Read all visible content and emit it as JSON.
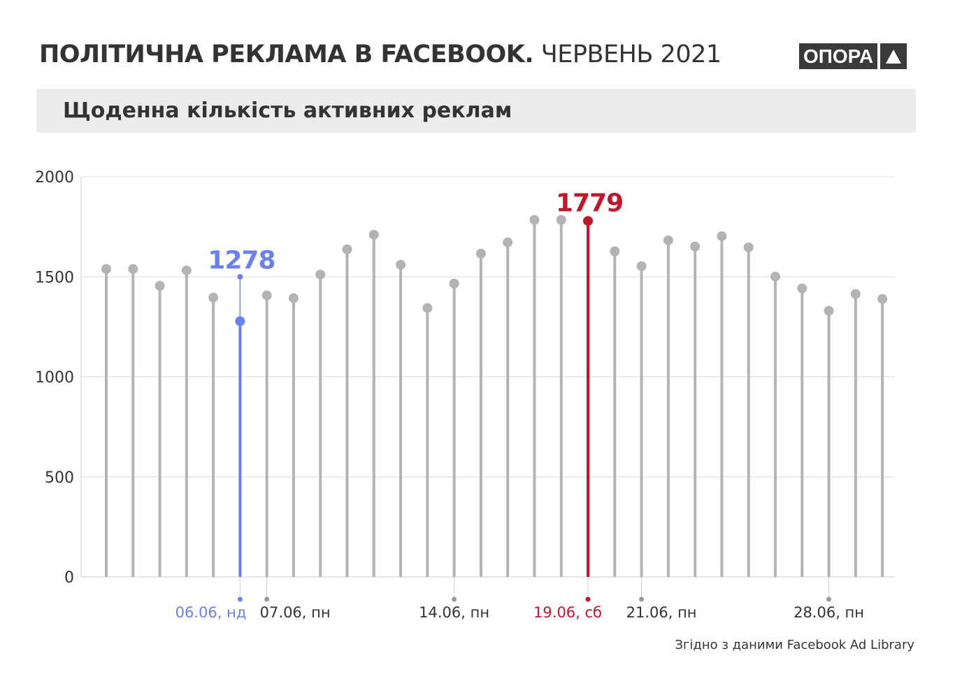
{
  "header": {
    "title_bold": "ПОЛІТИЧНА РЕКЛАМА В FACEBOOK.",
    "title_light": "ЧЕРВЕНЬ 2021",
    "logo_text": "ОПОРА",
    "logo_icon": "triangle-up-icon"
  },
  "subtitle": "Щоденна кількість активних реклам",
  "source": "Згідно з даними Facebook Ad Library",
  "colors": {
    "bar": "#b3b3b3",
    "highlight_blue": "#6a80f0",
    "highlight_red": "#c4162a",
    "grid": "#dddddd",
    "text": "#333333"
  },
  "chart_data": {
    "type": "lollipop",
    "title": "Щоденна кількість активних реклам",
    "xlabel": "",
    "ylabel": "",
    "ylim": [
      0,
      2000
    ],
    "yticks": [
      0,
      500,
      1000,
      1500,
      2000
    ],
    "grid": true,
    "days": [
      1,
      2,
      3,
      4,
      5,
      6,
      7,
      8,
      9,
      10,
      11,
      12,
      13,
      14,
      15,
      16,
      17,
      18,
      19,
      20,
      21,
      22,
      23,
      24,
      25,
      26,
      27,
      28,
      29,
      30
    ],
    "values": [
      1539,
      1539,
      1455,
      1532,
      1396,
      1278,
      1407,
      1393,
      1511,
      1637,
      1710,
      1560,
      1344,
      1466,
      1616,
      1672,
      1784,
      1784,
      1779,
      1627,
      1553,
      1682,
      1651,
      1703,
      1647,
      1501,
      1442,
      1330,
      1414,
      1389
    ],
    "xtick_labels": [
      {
        "day": 6,
        "label": "06.06, нд",
        "color": "blue"
      },
      {
        "day": 7,
        "label": "07.06, пн",
        "color": "default"
      },
      {
        "day": 14,
        "label": "14.06, пн",
        "color": "default"
      },
      {
        "day": 19,
        "label": "19.06, сб",
        "color": "red"
      },
      {
        "day": 21,
        "label": "21.06, пн",
        "color": "default"
      },
      {
        "day": 28,
        "label": "28.06, пн",
        "color": "default"
      }
    ],
    "annotations": [
      {
        "day": 6,
        "text": "1278",
        "color": "blue"
      },
      {
        "day": 19,
        "text": "1779",
        "color": "red"
      }
    ]
  }
}
